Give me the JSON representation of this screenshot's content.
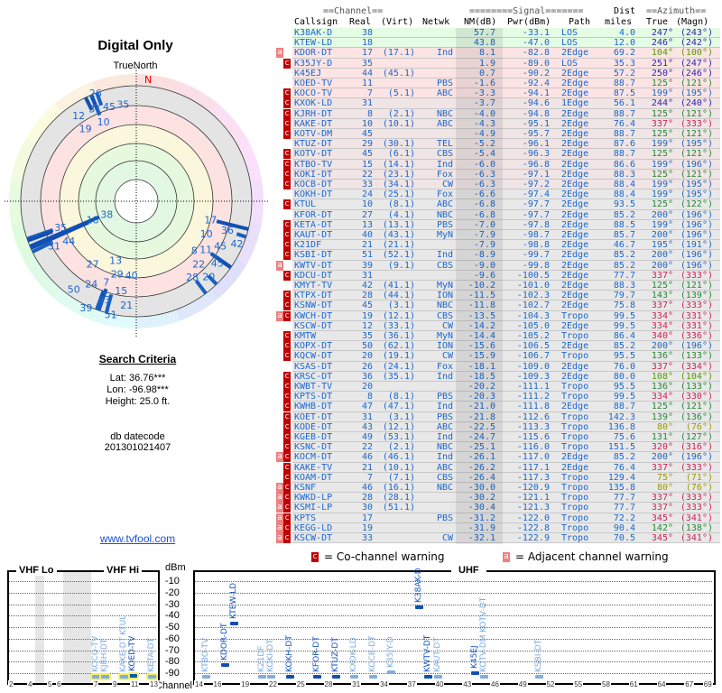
{
  "polar": {
    "title": "Digital Only",
    "north_label": "TrueNorth",
    "n_mark": "N"
  },
  "criteria": {
    "heading": "Search Criteria",
    "lat": "Lat: 36.76***",
    "lon": "Lon: -96.98***",
    "height": "Height: 25.0 ft.",
    "db_label": "db datecode",
    "db_value": "201301021407"
  },
  "site_link": "www.tvfool.com",
  "table": {
    "group_headers": {
      "channel": "==Channel==",
      "signal": "========Signal=======",
      "dist": "Dist",
      "azimuth": "==Azimuth=="
    },
    "columns": {
      "callsign": "Callsign",
      "real": "Real",
      "virt": "(Virt)",
      "netwk": "Netwk",
      "nm": "NM(dB)",
      "pwr": "Pwr(dBm)",
      "path": "Path",
      "dist": "miles",
      "true": "True",
      "magn": "(Magn)"
    },
    "stations": [
      {
        "c": "K38AK-D",
        "r": "38",
        "v": "",
        "n": "",
        "nm": "57.7",
        "p": "-33.1",
        "path": "LOS",
        "d": "4.0",
        "t": "247°",
        "m": "(243°)",
        "w": ""
      },
      {
        "c": "KTEW-LD",
        "r": "18",
        "v": "",
        "n": "",
        "nm": "43.8",
        "p": "-47.0",
        "path": "LOS",
        "d": "12.0",
        "t": "246°",
        "m": "(242°)",
        "w": ""
      },
      {
        "c": "KDOR-DT",
        "r": "17",
        "v": "(17.1)",
        "n": "Ind",
        "nm": "8.1",
        "p": "-82.8",
        "path": "2Edge",
        "d": "69.2",
        "t": "104°",
        "m": "(100°)",
        "w": "a"
      },
      {
        "c": "K35JY-D",
        "r": "35",
        "v": "",
        "n": "",
        "nm": "1.9",
        "p": "-89.0",
        "path": "LOS",
        "d": "35.3",
        "t": "251°",
        "m": "(247°)",
        "w": "c"
      },
      {
        "c": "K45EJ",
        "r": "44",
        "v": "(45.1)",
        "n": "",
        "nm": "0.7",
        "p": "-90.2",
        "path": "2Edge",
        "d": "57.2",
        "t": "250°",
        "m": "(246°)",
        "w": ""
      },
      {
        "c": "KOED-TV",
        "r": "11",
        "v": "",
        "n": "PBS",
        "nm": "-1.6",
        "p": "-92.4",
        "path": "2Edge",
        "d": "88.7",
        "t": "125°",
        "m": "(121°)",
        "w": ""
      },
      {
        "c": "KOCO-TV",
        "r": "7",
        "v": "(5.1)",
        "n": "ABC",
        "nm": "-3.3",
        "p": "-94.1",
        "path": "2Edge",
        "d": "87.5",
        "t": "199°",
        "m": "(195°)",
        "w": "c"
      },
      {
        "c": "KXOK-LD",
        "r": "31",
        "v": "",
        "n": "",
        "nm": "-3.7",
        "p": "-94.6",
        "path": "1Edge",
        "d": "56.1",
        "t": "244°",
        "m": "(240°)",
        "w": "c"
      },
      {
        "c": "KJRH-DT",
        "r": "8",
        "v": "(2.1)",
        "n": "NBC",
        "nm": "-4.0",
        "p": "-94.8",
        "path": "2Edge",
        "d": "88.7",
        "t": "125°",
        "m": "(121°)",
        "w": "c"
      },
      {
        "c": "KAKE-DT",
        "r": "10",
        "v": "(10.1)",
        "n": "ABC",
        "nm": "-4.3",
        "p": "-95.1",
        "path": "2Edge",
        "d": "76.4",
        "t": "337°",
        "m": "(333°)",
        "w": "c"
      },
      {
        "c": "KOTV-DM",
        "r": "45",
        "v": "",
        "n": "",
        "nm": "-4.9",
        "p": "-95.7",
        "path": "2Edge",
        "d": "88.7",
        "t": "125°",
        "m": "(121°)",
        "w": "c"
      },
      {
        "c": "KTUZ-DT",
        "r": "29",
        "v": "(30.1)",
        "n": "TEL",
        "nm": "-5.2",
        "p": "-96.1",
        "path": "2Edge",
        "d": "87.6",
        "t": "199°",
        "m": "(195°)",
        "w": ""
      },
      {
        "c": "KOTV-DT",
        "r": "45",
        "v": "(6.1)",
        "n": "CBS",
        "nm": "-5.4",
        "p": "-96.3",
        "path": "2Edge",
        "d": "88.7",
        "t": "125°",
        "m": "(121°)",
        "w": "c"
      },
      {
        "c": "KTBO-TV",
        "r": "15",
        "v": "(14.1)",
        "n": "Ind",
        "nm": "-6.0",
        "p": "-96.8",
        "path": "2Edge",
        "d": "86.6",
        "t": "199°",
        "m": "(196°)",
        "w": "c"
      },
      {
        "c": "KOKI-DT",
        "r": "22",
        "v": "(23.1)",
        "n": "Fox",
        "nm": "-6.3",
        "p": "-97.1",
        "path": "2Edge",
        "d": "88.3",
        "t": "125°",
        "m": "(121°)",
        "w": "c"
      },
      {
        "c": "KOCB-DT",
        "r": "33",
        "v": "(34.1)",
        "n": "CW",
        "nm": "-6.3",
        "p": "-97.2",
        "path": "2Edge",
        "d": "88.4",
        "t": "199°",
        "m": "(195°)",
        "w": "c"
      },
      {
        "c": "KOKH-DT",
        "r": "24",
        "v": "(25.1)",
        "n": "Fox",
        "nm": "-6.6",
        "p": "-97.4",
        "path": "2Edge",
        "d": "88.4",
        "t": "199°",
        "m": "(195°)",
        "w": ""
      },
      {
        "c": "KTUL",
        "r": "10",
        "v": "(8.1)",
        "n": "ABC",
        "nm": "-6.8",
        "p": "-97.7",
        "path": "2Edge",
        "d": "93.5",
        "t": "125°",
        "m": "(122°)",
        "w": "c"
      },
      {
        "c": "KFOR-DT",
        "r": "27",
        "v": "(4.1)",
        "n": "NBC",
        "nm": "-6.8",
        "p": "-97.7",
        "path": "2Edge",
        "d": "85.2",
        "t": "200°",
        "m": "(196°)",
        "w": ""
      },
      {
        "c": "KETA-DT",
        "r": "13",
        "v": "(13.1)",
        "n": "PBS",
        "nm": "-7.0",
        "p": "-97.8",
        "path": "2Edge",
        "d": "88.5",
        "t": "199°",
        "m": "(196°)",
        "w": "c"
      },
      {
        "c": "KAUT-DT",
        "r": "40",
        "v": "(43.1)",
        "n": "MyN",
        "nm": "-7.9",
        "p": "-98.7",
        "path": "2Edge",
        "d": "85.7",
        "t": "200°",
        "m": "(196°)",
        "w": "c"
      },
      {
        "c": "K21DF",
        "r": "21",
        "v": "(21.1)",
        "n": "",
        "nm": "-7.9",
        "p": "-98.8",
        "path": "2Edge",
        "d": "46.7",
        "t": "195°",
        "m": "(191°)",
        "w": "c"
      },
      {
        "c": "KSBI-DT",
        "r": "51",
        "v": "(52.1)",
        "n": "Ind",
        "nm": "-8.9",
        "p": "-99.7",
        "path": "2Edge",
        "d": "85.2",
        "t": "200°",
        "m": "(196°)",
        "w": "c"
      },
      {
        "c": "KWTV-DT",
        "r": "39",
        "v": "(9.1)",
        "n": "CBS",
        "nm": "-9.0",
        "p": "-99.8",
        "path": "2Edge",
        "d": "85.2",
        "t": "200°",
        "m": "(196°)",
        "w": "a"
      },
      {
        "c": "KDCU-DT",
        "r": "31",
        "v": "",
        "n": "",
        "nm": "-9.6",
        "p": "-100.5",
        "path": "2Edge",
        "d": "77.7",
        "t": "337°",
        "m": "(333°)",
        "w": "c"
      },
      {
        "c": "KMYT-TV",
        "r": "42",
        "v": "(41.1)",
        "n": "MyN",
        "nm": "-10.2",
        "p": "-101.0",
        "path": "2Edge",
        "d": "88.3",
        "t": "125°",
        "m": "(121°)",
        "w": ""
      },
      {
        "c": "KTPX-DT",
        "r": "28",
        "v": "(44.1)",
        "n": "ION",
        "nm": "-11.5",
        "p": "-102.3",
        "path": "2Edge",
        "d": "79.7",
        "t": "143°",
        "m": "(139°)",
        "w": "c"
      },
      {
        "c": "KSNW-DT",
        "r": "45",
        "v": "(3.1)",
        "n": "NBC",
        "nm": "-11.8",
        "p": "-102.7",
        "path": "2Edge",
        "d": "75.8",
        "t": "337°",
        "m": "(333°)",
        "w": "c"
      },
      {
        "c": "KWCH-DT",
        "r": "19",
        "v": "(12.1)",
        "n": "CBS",
        "nm": "-13.5",
        "p": "-104.3",
        "path": "Tropo",
        "d": "99.5",
        "t": "334°",
        "m": "(331°)",
        "w": "ac"
      },
      {
        "c": "KSCW-DT",
        "r": "12",
        "v": "(33.1)",
        "n": "CW",
        "nm": "-14.2",
        "p": "-105.0",
        "path": "2Edge",
        "d": "99.5",
        "t": "334°",
        "m": "(331°)",
        "w": ""
      },
      {
        "c": "KMTW",
        "r": "35",
        "v": "(36.1)",
        "n": "MyN",
        "nm": "-14.4",
        "p": "-105.2",
        "path": "Tropo",
        "d": "86.4",
        "t": "340°",
        "m": "(336°)",
        "w": "c"
      },
      {
        "c": "KOPX-DT",
        "r": "50",
        "v": "(62.1)",
        "n": "ION",
        "nm": "-15.6",
        "p": "-106.5",
        "path": "2Edge",
        "d": "85.2",
        "t": "200°",
        "m": "(196°)",
        "w": "c"
      },
      {
        "c": "KQCW-DT",
        "r": "20",
        "v": "(19.1)",
        "n": "CW",
        "nm": "-15.9",
        "p": "-106.7",
        "path": "Tropo",
        "d": "95.5",
        "t": "136°",
        "m": "(133°)",
        "w": "c"
      },
      {
        "c": "KSAS-DT",
        "r": "26",
        "v": "(24.1)",
        "n": "Fox",
        "nm": "-18.1",
        "p": "-109.0",
        "path": "2Edge",
        "d": "76.0",
        "t": "337°",
        "m": "(334°)",
        "w": ""
      },
      {
        "c": "KRSC-DT",
        "r": "36",
        "v": "(35.1)",
        "n": "Ind",
        "nm": "-18.5",
        "p": "-109.3",
        "path": "2Edge",
        "d": "80.0",
        "t": "108°",
        "m": "(104°)",
        "w": "c"
      },
      {
        "c": "KWBT-TV",
        "r": "20",
        "v": "",
        "n": "",
        "nm": "-20.2",
        "p": "-111.1",
        "path": "Tropo",
        "d": "95.5",
        "t": "136°",
        "m": "(133°)",
        "w": "c"
      },
      {
        "c": "KPTS-DT",
        "r": "8",
        "v": "(8.1)",
        "n": "PBS",
        "nm": "-20.3",
        "p": "-111.2",
        "path": "Tropo",
        "d": "99.5",
        "t": "334°",
        "m": "(330°)",
        "w": "c"
      },
      {
        "c": "KWHB-DT",
        "r": "47",
        "v": "(47.1)",
        "n": "Ind",
        "nm": "-21.0",
        "p": "-111.8",
        "path": "2Edge",
        "d": "88.7",
        "t": "125°",
        "m": "(121°)",
        "w": "c"
      },
      {
        "c": "KOET-DT",
        "r": "31",
        "v": "(3.1)",
        "n": "PBS",
        "nm": "-21.8",
        "p": "-112.6",
        "path": "Tropo",
        "d": "142.3",
        "t": "139°",
        "m": "(136°)",
        "w": "c"
      },
      {
        "c": "KODE-DT",
        "r": "43",
        "v": "(12.1)",
        "n": "ABC",
        "nm": "-22.5",
        "p": "-113.3",
        "path": "Tropo",
        "d": "136.8",
        "t": "80°",
        "m": "(76°)",
        "w": "c"
      },
      {
        "c": "KGEB-DT",
        "r": "49",
        "v": "(53.1)",
        "n": "Ind",
        "nm": "-24.7",
        "p": "-115.6",
        "path": "Tropo",
        "d": "75.6",
        "t": "131°",
        "m": "(127°)",
        "w": "c"
      },
      {
        "c": "KSNC-DT",
        "r": "22",
        "v": "(2.1)",
        "n": "NBC",
        "nm": "-25.1",
        "p": "-116.0",
        "path": "Tropo",
        "d": "151.5",
        "t": "320°",
        "m": "(316°)",
        "w": "c"
      },
      {
        "c": "KOCM-DT",
        "r": "46",
        "v": "(46.1)",
        "n": "Ind",
        "nm": "-26.1",
        "p": "-117.0",
        "path": "2Edge",
        "d": "85.2",
        "t": "200°",
        "m": "(196°)",
        "w": "ac"
      },
      {
        "c": "KAKE-TV",
        "r": "21",
        "v": "(10.1)",
        "n": "ABC",
        "nm": "-26.2",
        "p": "-117.1",
        "path": "2Edge",
        "d": "76.4",
        "t": "337°",
        "m": "(333°)",
        "w": "c"
      },
      {
        "c": "KOAM-DT",
        "r": "7",
        "v": "(7.1)",
        "n": "CBS",
        "nm": "-26.4",
        "p": "-117.3",
        "path": "Tropo",
        "d": "129.4",
        "t": "75°",
        "m": "(71°)",
        "w": "c"
      },
      {
        "c": "KSNF",
        "r": "46",
        "v": "(16.1)",
        "n": "NBC",
        "nm": "-30.0",
        "p": "-120.9",
        "path": "Tropo",
        "d": "135.8",
        "t": "80°",
        "m": "(76°)",
        "w": "ac"
      },
      {
        "c": "KWKD-LP",
        "r": "28",
        "v": "(28.1)",
        "n": "",
        "nm": "-30.2",
        "p": "-121.1",
        "path": "Tropo",
        "d": "77.7",
        "t": "337°",
        "m": "(333°)",
        "w": "ac"
      },
      {
        "c": "KSMI-LP",
        "r": "30",
        "v": "(51.1)",
        "n": "",
        "nm": "-30.4",
        "p": "-121.3",
        "path": "Tropo",
        "d": "77.7",
        "t": "337°",
        "m": "(333°)",
        "w": "ac"
      },
      {
        "c": "KPTS",
        "r": "17",
        "v": "",
        "n": "PBS",
        "nm": "-31.2",
        "p": "-122.0",
        "path": "Tropo",
        "d": "72.2",
        "t": "345°",
        "m": "(341°)",
        "w": "ac"
      },
      {
        "c": "KEGG-LD",
        "r": "19",
        "v": "",
        "n": "",
        "nm": "-31.9",
        "p": "-122.8",
        "path": "Tropo",
        "d": "90.4",
        "t": "142°",
        "m": "(138°)",
        "w": "ac"
      },
      {
        "c": "KSCW-DT",
        "r": "33",
        "v": "",
        "n": "CW",
        "nm": "-32.1",
        "p": "-122.9",
        "path": "Tropo",
        "d": "70.5",
        "t": "345°",
        "m": "(341°)",
        "w": "ac"
      }
    ]
  },
  "legend": {
    "co_mark": "c",
    "co_label": "= Co-channel warning",
    "adj_mark": "a",
    "adj_label": "= Adjacent channel warning"
  },
  "spectrum": {
    "vhf_lo": "VHF Lo",
    "vhf_hi": "VHF Hi",
    "uhf": "UHF",
    "unit": "dBm",
    "channel_label": "Channel",
    "dbm_ticks": [
      "-10",
      "-20",
      "-30",
      "-40",
      "-50",
      "-60",
      "-70",
      "-80",
      "-90"
    ],
    "vhf_ticks": [
      "2",
      "4",
      "5",
      "6",
      "7",
      "9",
      "11",
      "13"
    ],
    "uhf_ticks": [
      "14",
      "16",
      "19",
      "22",
      "25",
      "28",
      "31",
      "34",
      "37",
      "40",
      "43",
      "46",
      "49",
      "52",
      "55",
      "58",
      "61",
      "64",
      "67",
      "69"
    ]
  },
  "colors": {
    "link": "#1a66d0",
    "co": "#c00000",
    "adj": "#f08080",
    "bar_strong": "#1050b0",
    "bar_weak": "#80aee0"
  }
}
